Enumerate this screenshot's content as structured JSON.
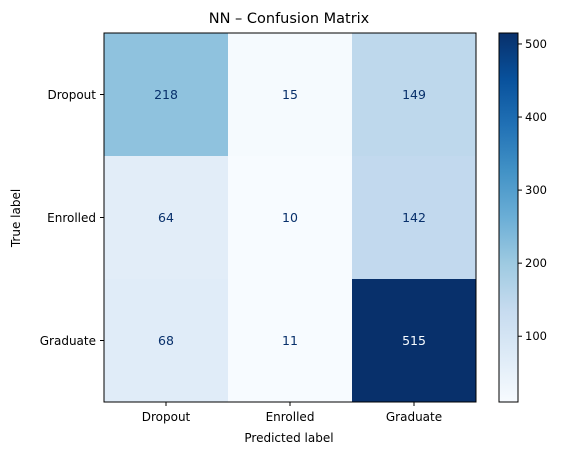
{
  "chart_data": {
    "type": "heatmap",
    "title": "NN – Confusion Matrix",
    "xlabel": "Predicted label",
    "ylabel": "True label",
    "x_categories": [
      "Dropout",
      "Enrolled",
      "Graduate"
    ],
    "y_categories": [
      "Dropout",
      "Enrolled",
      "Graduate"
    ],
    "values": [
      [
        218,
        15,
        149
      ],
      [
        64,
        10,
        142
      ],
      [
        68,
        11,
        515
      ]
    ],
    "colormap": "Blues",
    "colorbar": {
      "range": [
        10,
        515
      ],
      "ticks": [
        100,
        200,
        300,
        400,
        500
      ],
      "tick_labels": [
        "100",
        "200",
        "300",
        "400",
        "500"
      ]
    },
    "colors": {
      "low": "#f7fbff",
      "high": "#08306b",
      "text_on_light": "#08306b",
      "text_on_dark": "#f7fbff"
    }
  }
}
